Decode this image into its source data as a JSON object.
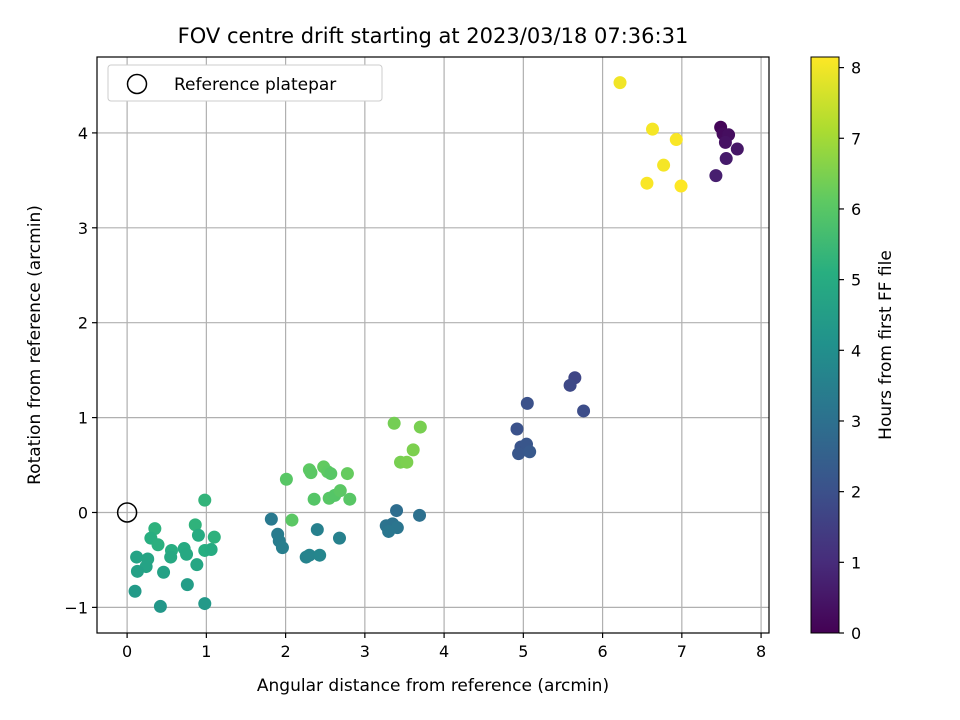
{
  "chart_data": {
    "type": "scatter",
    "title": "FOV centre drift starting at 2023/03/18 07:36:31",
    "xlabel": "Angular distance from reference (arcmin)",
    "ylabel": "Rotation from reference (arcmin)",
    "xlim": [
      -0.38,
      8.1
    ],
    "ylim": [
      -1.27,
      4.8
    ],
    "xticks": [
      0,
      1,
      2,
      3,
      4,
      5,
      6,
      7,
      8
    ],
    "yticks": [
      -1,
      0,
      1,
      2,
      3,
      4
    ],
    "grid": true,
    "legend": {
      "placement": "top-left",
      "entries": [
        "Reference platepar"
      ]
    },
    "reference_point": {
      "x": 0,
      "y": 0,
      "marker": "open-circle"
    },
    "colorbar": {
      "label": "Hours from first FF file",
      "colormap": "viridis",
      "range": [
        0,
        8.15
      ],
      "ticks": [
        0,
        1,
        2,
        3,
        4,
        5,
        6,
        7,
        8
      ]
    },
    "points": [
      {
        "x": 7.49,
        "y": 4.06,
        "c": 0.1
      },
      {
        "x": 7.52,
        "y": 3.99,
        "c": 0.2
      },
      {
        "x": 7.59,
        "y": 3.98,
        "c": 0.3
      },
      {
        "x": 7.55,
        "y": 3.9,
        "c": 0.4
      },
      {
        "x": 7.7,
        "y": 3.83,
        "c": 0.5
      },
      {
        "x": 7.56,
        "y": 3.73,
        "c": 0.6
      },
      {
        "x": 7.43,
        "y": 3.55,
        "c": 0.7
      },
      {
        "x": 5.65,
        "y": 1.42,
        "c": 1.7
      },
      {
        "x": 5.59,
        "y": 1.34,
        "c": 1.8
      },
      {
        "x": 5.76,
        "y": 1.07,
        "c": 1.9
      },
      {
        "x": 5.05,
        "y": 1.15,
        "c": 2.0
      },
      {
        "x": 4.92,
        "y": 0.88,
        "c": 2.05
      },
      {
        "x": 4.97,
        "y": 0.69,
        "c": 2.1
      },
      {
        "x": 5.04,
        "y": 0.72,
        "c": 2.15
      },
      {
        "x": 4.94,
        "y": 0.62,
        "c": 2.2
      },
      {
        "x": 5.08,
        "y": 0.64,
        "c": 2.25
      },
      {
        "x": 3.4,
        "y": 0.02,
        "c": 2.9
      },
      {
        "x": 3.69,
        "y": -0.03,
        "c": 3.0
      },
      {
        "x": 3.27,
        "y": -0.14,
        "c": 3.1
      },
      {
        "x": 3.35,
        "y": -0.12,
        "c": 3.05
      },
      {
        "x": 3.41,
        "y": -0.16,
        "c": 3.15
      },
      {
        "x": 3.3,
        "y": -0.2,
        "c": 3.2
      },
      {
        "x": 1.82,
        "y": -0.07,
        "c": 3.3
      },
      {
        "x": 1.9,
        "y": -0.23,
        "c": 3.35
      },
      {
        "x": 1.92,
        "y": -0.3,
        "c": 3.4
      },
      {
        "x": 1.96,
        "y": -0.37,
        "c": 3.45
      },
      {
        "x": 2.4,
        "y": -0.18,
        "c": 3.5
      },
      {
        "x": 2.68,
        "y": -0.27,
        "c": 3.55
      },
      {
        "x": 2.26,
        "y": -0.47,
        "c": 3.6
      },
      {
        "x": 2.3,
        "y": -0.45,
        "c": 3.65
      },
      {
        "x": 2.43,
        "y": -0.45,
        "c": 3.7
      },
      {
        "x": 0.98,
        "y": 0.13,
        "c": 5.3
      },
      {
        "x": 0.35,
        "y": -0.17,
        "c": 5.2
      },
      {
        "x": 0.3,
        "y": -0.27,
        "c": 5.1
      },
      {
        "x": 0.39,
        "y": -0.34,
        "c": 5.15
      },
      {
        "x": 0.86,
        "y": -0.13,
        "c": 5.25
      },
      {
        "x": 0.9,
        "y": -0.24,
        "c": 5.0
      },
      {
        "x": 1.1,
        "y": -0.26,
        "c": 5.2
      },
      {
        "x": 0.98,
        "y": -0.4,
        "c": 5.1
      },
      {
        "x": 1.06,
        "y": -0.39,
        "c": 5.0
      },
      {
        "x": 0.72,
        "y": -0.38,
        "c": 4.95
      },
      {
        "x": 0.75,
        "y": -0.44,
        "c": 4.9
      },
      {
        "x": 0.56,
        "y": -0.4,
        "c": 5.05
      },
      {
        "x": 0.55,
        "y": -0.47,
        "c": 4.9
      },
      {
        "x": 0.88,
        "y": -0.55,
        "c": 4.8
      },
      {
        "x": 0.12,
        "y": -0.47,
        "c": 4.7
      },
      {
        "x": 0.26,
        "y": -0.49,
        "c": 4.75
      },
      {
        "x": 0.24,
        "y": -0.57,
        "c": 4.7
      },
      {
        "x": 0.13,
        "y": -0.62,
        "c": 4.6
      },
      {
        "x": 0.46,
        "y": -0.63,
        "c": 4.65
      },
      {
        "x": 0.76,
        "y": -0.76,
        "c": 4.5
      },
      {
        "x": 0.1,
        "y": -0.83,
        "c": 4.4
      },
      {
        "x": 0.42,
        "y": -0.99,
        "c": 4.3
      },
      {
        "x": 0.98,
        "y": -0.96,
        "c": 4.35
      },
      {
        "x": 2.01,
        "y": 0.35,
        "c": 6.0
      },
      {
        "x": 2.08,
        "y": -0.08,
        "c": 6.05
      },
      {
        "x": 2.3,
        "y": 0.45,
        "c": 6.1
      },
      {
        "x": 2.32,
        "y": 0.42,
        "c": 6.05
      },
      {
        "x": 2.48,
        "y": 0.48,
        "c": 6.15
      },
      {
        "x": 2.53,
        "y": 0.43,
        "c": 6.1
      },
      {
        "x": 2.57,
        "y": 0.41,
        "c": 6.0
      },
      {
        "x": 2.78,
        "y": 0.41,
        "c": 6.2
      },
      {
        "x": 2.36,
        "y": 0.14,
        "c": 5.95
      },
      {
        "x": 2.55,
        "y": 0.15,
        "c": 6.0
      },
      {
        "x": 2.62,
        "y": 0.18,
        "c": 5.95
      },
      {
        "x": 2.69,
        "y": 0.23,
        "c": 6.05
      },
      {
        "x": 2.81,
        "y": 0.14,
        "c": 6.0
      },
      {
        "x": 3.37,
        "y": 0.94,
        "c": 6.4
      },
      {
        "x": 3.7,
        "y": 0.9,
        "c": 6.45
      },
      {
        "x": 3.61,
        "y": 0.66,
        "c": 6.5
      },
      {
        "x": 3.45,
        "y": 0.53,
        "c": 6.45
      },
      {
        "x": 3.53,
        "y": 0.53,
        "c": 6.5
      },
      {
        "x": 6.22,
        "y": 4.53,
        "c": 8.0
      },
      {
        "x": 6.63,
        "y": 4.04,
        "c": 8.05
      },
      {
        "x": 6.93,
        "y": 3.93,
        "c": 8.1
      },
      {
        "x": 6.77,
        "y": 3.66,
        "c": 8.05
      },
      {
        "x": 6.56,
        "y": 3.47,
        "c": 8.1
      },
      {
        "x": 6.99,
        "y": 3.44,
        "c": 8.15
      }
    ]
  }
}
